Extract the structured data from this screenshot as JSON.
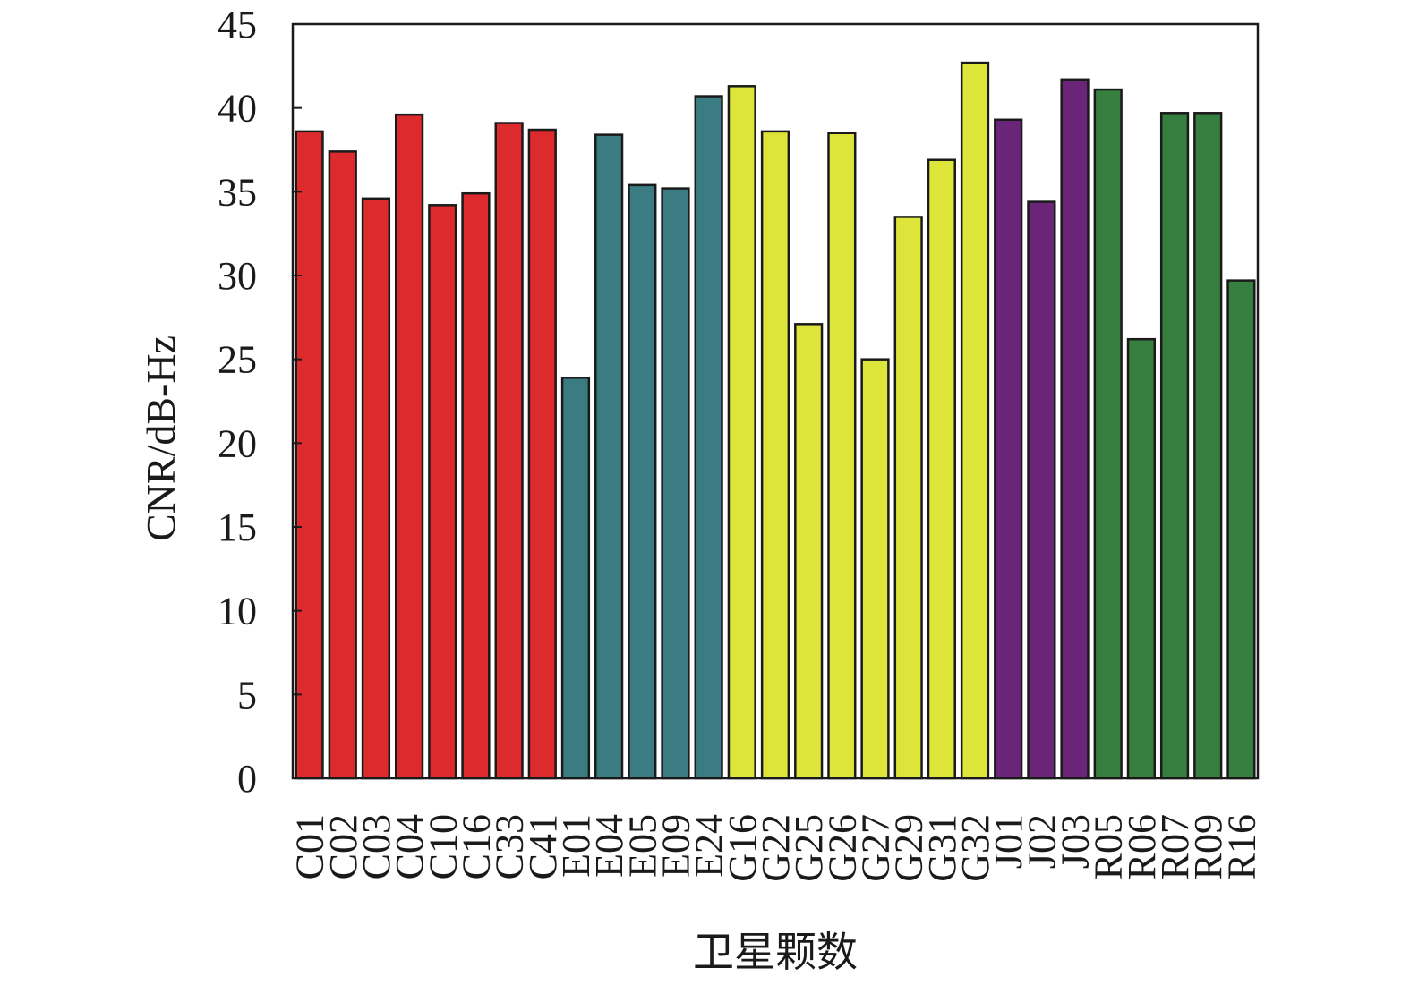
{
  "chart_data": {
    "type": "bar",
    "xlabel": "卫星颗数",
    "ylabel": "CNR/dB-Hz",
    "ylim": [
      0,
      45
    ],
    "yticks": [
      0,
      5,
      10,
      15,
      20,
      25,
      30,
      35,
      40,
      45
    ],
    "grid": false,
    "legend": "none",
    "categories": [
      "C01",
      "C02",
      "C03",
      "C04",
      "C10",
      "C16",
      "C33",
      "C41",
      "E01",
      "E04",
      "E05",
      "E09",
      "E24",
      "G16",
      "G22",
      "G25",
      "G26",
      "G27",
      "G29",
      "G31",
      "G32",
      "J01",
      "J02",
      "J03",
      "R05",
      "R06",
      "R07",
      "R09",
      "R16"
    ],
    "values": [
      38.6,
      37.4,
      34.6,
      39.6,
      34.2,
      34.9,
      39.1,
      38.7,
      23.9,
      38.4,
      35.4,
      35.2,
      40.7,
      41.3,
      38.6,
      27.1,
      38.5,
      25.0,
      33.5,
      36.9,
      42.7,
      39.3,
      34.4,
      41.7,
      41.1,
      26.2,
      39.7,
      39.7,
      29.7
    ],
    "group_colors": {
      "C": "#dd2a2c",
      "E": "#3a7c82",
      "G": "#dde43a",
      "J": "#6a2478",
      "R": "#377f3e"
    }
  }
}
